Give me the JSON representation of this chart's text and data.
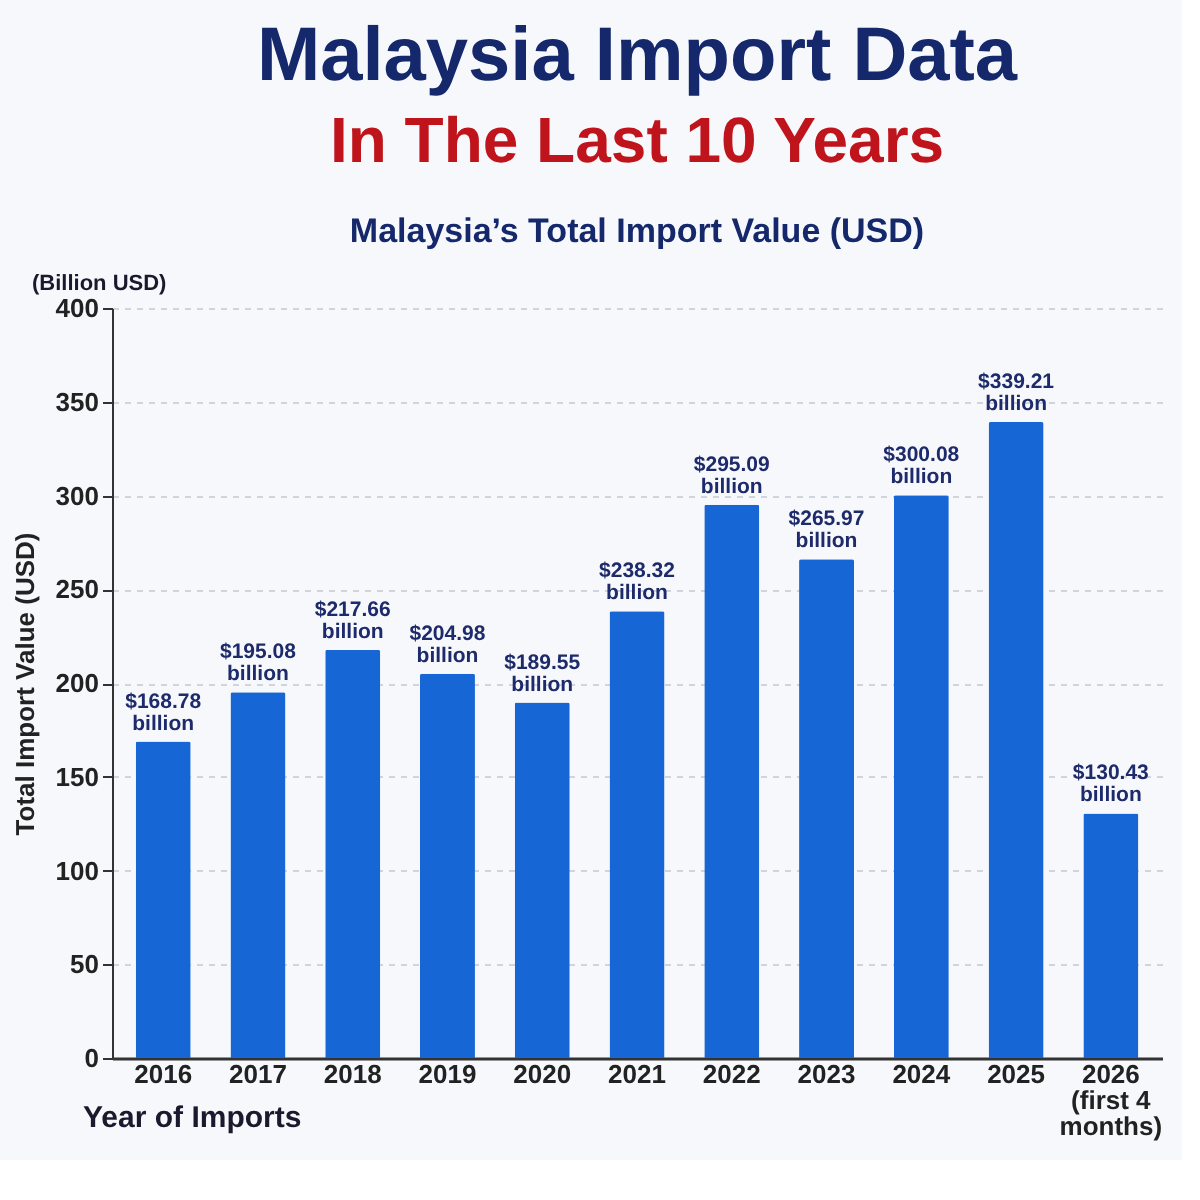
{
  "chart_data": {
    "type": "bar",
    "title": "Malaysia Import Data",
    "subtitle": "In The Last 10 Years",
    "annotations": [
      "Malaysia’s Total Import Value (USD)",
      "(Billion USD)"
    ],
    "xlabel": "Year of Imports",
    "ylabel": "Total Import Value (USD)",
    "categories": [
      "2016",
      "2017",
      "2018",
      "2019",
      "2020",
      "2021",
      "2022",
      "2023",
      "2024",
      "2025",
      "2026 (first 4 months)"
    ],
    "values": [
      168.78,
      195.08,
      217.66,
      204.98,
      189.55,
      238.32,
      295.09,
      265.97,
      300.08,
      339.21,
      130.43
    ],
    "value_labels": [
      "$168.78 billion",
      "$195.08 billion",
      "$217.66 billion",
      "$204.98 billion",
      "$189.55 billion",
      "$238.32 billion",
      "$295.09 billion",
      "$265.97 billion",
      "$300.08 billion",
      "$339.21 billion",
      "$130.43 billion"
    ],
    "color": "#1766d6",
    "ylim": [
      0,
      400
    ],
    "yticks": [
      0,
      50,
      100,
      150,
      200,
      250,
      300,
      350,
      400
    ],
    "grid": "y"
  }
}
